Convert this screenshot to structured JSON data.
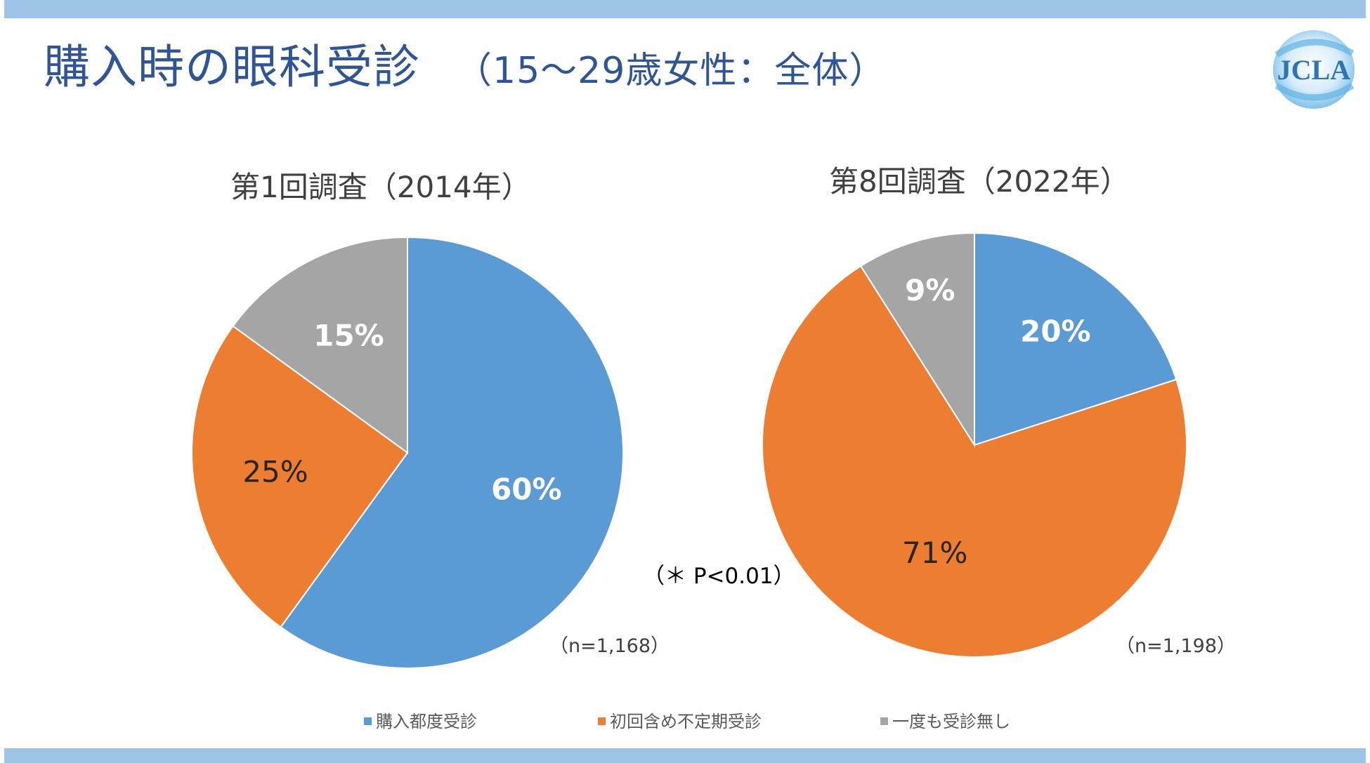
{
  "title": {
    "main": "購入時の眼科受診",
    "sub": "（15～29歳女性：全体）"
  },
  "logo": {
    "text": "JCLA",
    "color": "#2e75b6"
  },
  "colors": {
    "band": "#9dc3e6",
    "title": "#2f5597",
    "blue": "#5b9bd5",
    "orange": "#ed7d31",
    "gray": "#a5a5a5"
  },
  "significance": "（＊ P<0.01）",
  "legend": [
    {
      "label": "購入都度受診",
      "color": "#5b9bd5"
    },
    {
      "label": "初回含め不定期受診",
      "color": "#ed7d31"
    },
    {
      "label": "一度も受診無し",
      "color": "#a5a5a5"
    }
  ],
  "chart_data": [
    {
      "type": "pie",
      "title": "第1回調査（2014年）",
      "n_label": "（n=1,168）",
      "categories": [
        "購入都度受診",
        "初回含め不定期受診",
        "一度も受診無し"
      ],
      "values": [
        60,
        25,
        15
      ],
      "labels": [
        "60%",
        "25%",
        "15%"
      ],
      "label_colors": [
        "#ffffff",
        "#262626",
        "#ffffff"
      ],
      "colors": [
        "#5b9bd5",
        "#ed7d31",
        "#a5a5a5"
      ],
      "start_angle": 0,
      "direction": "clockwise"
    },
    {
      "type": "pie",
      "title": "第8回調査（2022年）",
      "n_label": "（n=1,198）",
      "categories": [
        "購入都度受診",
        "初回含め不定期受診",
        "一度も受診無し"
      ],
      "values": [
        20,
        71,
        9
      ],
      "labels": [
        "20%",
        "71%",
        "9%"
      ],
      "label_colors": [
        "#ffffff",
        "#262626",
        "#ffffff"
      ],
      "colors": [
        "#5b9bd5",
        "#ed7d31",
        "#a5a5a5"
      ],
      "start_angle": 0,
      "direction": "clockwise"
    }
  ]
}
